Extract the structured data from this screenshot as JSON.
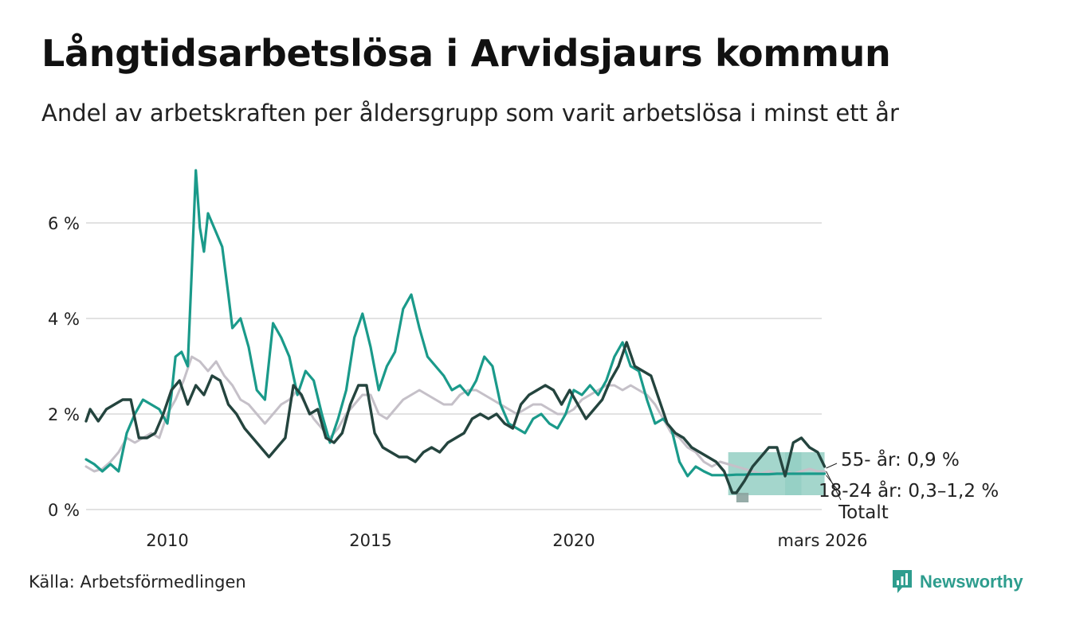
{
  "header": {
    "title": "Långtidsarbetslösa i Arvidsjaurs kommun",
    "subtitle": "Andel av arbetskraften per åldersgrupp som varit arbetslösa i minst ett år"
  },
  "footer": {
    "source": "Källa: Arbetsförmedlingen",
    "brand": "Newsworthy",
    "brand_icon": "newsworthy-logo-icon"
  },
  "colors": {
    "teal": "#1a9a8a",
    "dark": "#24443e",
    "grey": "#c5c0c8",
    "band": "#94cfc3",
    "band_dark": "#8ba39f",
    "grid": "#e2e2e2"
  },
  "chart_data": {
    "type": "line",
    "title": "Långtidsarbetslösa i Arvidsjaurs kommun",
    "xlabel": "",
    "ylabel": "",
    "xlim": [
      2008.0,
      2026.25
    ],
    "ylim": [
      0,
      7.2
    ],
    "y_ticks": [
      0,
      2,
      4,
      6
    ],
    "y_tick_labels": [
      "0 %",
      "2 %",
      "4 %",
      "6 %"
    ],
    "x_ticks": [
      2010,
      2015,
      2020,
      2026.17
    ],
    "x_tick_labels": [
      "2010",
      "2015",
      "2020",
      "mars 2026"
    ],
    "grid": true,
    "series": [
      {
        "name": "Totalt",
        "label": "Totalt",
        "color": "#c5c0c8",
        "x": [
          2008.0,
          2008.2,
          2008.4,
          2008.6,
          2008.8,
          2009.0,
          2009.2,
          2009.4,
          2009.6,
          2009.8,
          2010.0,
          2010.2,
          2010.4,
          2010.6,
          2010.8,
          2011.0,
          2011.2,
          2011.4,
          2011.6,
          2011.8,
          2012.0,
          2012.2,
          2012.4,
          2012.6,
          2012.8,
          2013.0,
          2013.2,
          2013.4,
          2013.6,
          2013.8,
          2014.0,
          2014.2,
          2014.4,
          2014.6,
          2014.8,
          2015.0,
          2015.2,
          2015.4,
          2015.6,
          2015.8,
          2016.0,
          2016.2,
          2016.4,
          2016.6,
          2016.8,
          2017.0,
          2017.2,
          2017.4,
          2017.6,
          2017.8,
          2018.0,
          2018.2,
          2018.4,
          2018.6,
          2018.8,
          2019.0,
          2019.2,
          2019.4,
          2019.6,
          2019.8,
          2020.0,
          2020.2,
          2020.4,
          2020.6,
          2020.8,
          2021.0,
          2021.2,
          2021.4,
          2021.6,
          2021.8,
          2022.0,
          2022.2,
          2022.4,
          2022.6,
          2022.8,
          2023.0,
          2023.2,
          2023.4,
          2023.6,
          2023.8,
          2024.0,
          2024.2,
          2024.4,
          2024.6,
          2024.8,
          2025.0,
          2025.2,
          2025.4,
          2025.6,
          2025.8,
          2026.0,
          2026.17
        ],
        "values": [
          0.9,
          0.8,
          0.85,
          1.0,
          1.2,
          1.5,
          1.4,
          1.5,
          1.6,
          1.5,
          2.0,
          2.3,
          2.7,
          3.2,
          3.1,
          2.9,
          3.1,
          2.8,
          2.6,
          2.3,
          2.2,
          2.0,
          1.8,
          2.0,
          2.2,
          2.3,
          2.5,
          2.2,
          1.9,
          1.7,
          1.5,
          1.7,
          2.0,
          2.2,
          2.4,
          2.4,
          2.0,
          1.9,
          2.1,
          2.3,
          2.4,
          2.5,
          2.4,
          2.3,
          2.2,
          2.2,
          2.4,
          2.5,
          2.5,
          2.4,
          2.3,
          2.2,
          2.1,
          2.0,
          2.1,
          2.2,
          2.2,
          2.1,
          2.0,
          2.0,
          2.1,
          2.3,
          2.4,
          2.5,
          2.6,
          2.6,
          2.5,
          2.6,
          2.5,
          2.4,
          2.2,
          1.9,
          1.6,
          1.5,
          1.3,
          1.2,
          1.0,
          0.9,
          1.0,
          0.95,
          0.9,
          0.85,
          0.8,
          0.75,
          0.8,
          0.75,
          0.8,
          0.75,
          0.8,
          0.85,
          0.8,
          0.8
        ]
      },
      {
        "name": "18-24 år",
        "label": "18-24 år: 0,3–1,2 %",
        "color": "#1a9a8a",
        "x": [
          2008.0,
          2008.2,
          2008.4,
          2008.6,
          2008.8,
          2009.0,
          2009.2,
          2009.4,
          2009.6,
          2009.8,
          2010.0,
          2010.1,
          2010.2,
          2010.35,
          2010.5,
          2010.6,
          2010.7,
          2010.8,
          2010.9,
          2011.0,
          2011.1,
          2011.2,
          2011.35,
          2011.5,
          2011.6,
          2011.8,
          2012.0,
          2012.2,
          2012.4,
          2012.6,
          2012.8,
          2013.0,
          2013.2,
          2013.4,
          2013.6,
          2013.8,
          2014.0,
          2014.2,
          2014.4,
          2014.6,
          2014.8,
          2015.0,
          2015.2,
          2015.4,
          2015.6,
          2015.8,
          2016.0,
          2016.2,
          2016.4,
          2016.6,
          2016.8,
          2017.0,
          2017.2,
          2017.4,
          2017.6,
          2017.8,
          2018.0,
          2018.2,
          2018.4,
          2018.6,
          2018.8,
          2019.0,
          2019.2,
          2019.4,
          2019.6,
          2019.8,
          2020.0,
          2020.2,
          2020.4,
          2020.6,
          2020.8,
          2021.0,
          2021.2,
          2021.4,
          2021.6,
          2021.8,
          2022.0,
          2022.2,
          2022.4,
          2022.6,
          2022.8,
          2023.0,
          2023.2,
          2023.4,
          2023.6,
          2023.8,
          2024.0,
          2024.2,
          2024.4,
          2024.6,
          2024.8,
          2025.0,
          2025.2,
          2025.4,
          2025.6,
          2025.8,
          2026.0,
          2026.17
        ],
        "values": [
          1.05,
          0.95,
          0.8,
          0.95,
          0.8,
          1.6,
          2.0,
          2.3,
          2.2,
          2.1,
          1.8,
          2.4,
          3.2,
          3.3,
          3.0,
          5.0,
          7.1,
          5.9,
          5.4,
          6.2,
          6.0,
          5.8,
          5.5,
          4.5,
          3.8,
          4.0,
          3.4,
          2.5,
          2.3,
          3.9,
          3.6,
          3.2,
          2.4,
          2.9,
          2.7,
          2.0,
          1.4,
          1.9,
          2.5,
          3.6,
          4.1,
          3.4,
          2.5,
          3.0,
          3.3,
          4.2,
          4.5,
          3.8,
          3.2,
          3.0,
          2.8,
          2.5,
          2.6,
          2.4,
          2.7,
          3.2,
          3.0,
          2.2,
          1.8,
          1.7,
          1.6,
          1.9,
          2.0,
          1.8,
          1.7,
          2.0,
          2.5,
          2.4,
          2.6,
          2.4,
          2.7,
          3.2,
          3.5,
          3.0,
          2.9,
          2.3,
          1.8,
          1.9,
          1.7,
          1.0,
          0.7,
          0.9,
          0.8,
          0.72,
          0.72,
          0.72,
          0.73,
          0.73,
          0.74,
          0.74,
          0.74,
          0.75,
          0.75,
          0.75,
          0.75,
          0.75,
          0.75,
          0.75
        ],
        "band_x": [
          2023.8,
          2025.6
        ],
        "band_low": 0.3,
        "band_high": 1.2
      },
      {
        "name": "55- år",
        "label": "55- år: 0,9 %",
        "color": "#24443e",
        "x": [
          2008.0,
          2008.1,
          2008.3,
          2008.5,
          2008.7,
          2008.9,
          2009.1,
          2009.3,
          2009.5,
          2009.7,
          2009.9,
          2010.1,
          2010.3,
          2010.5,
          2010.7,
          2010.9,
          2011.1,
          2011.3,
          2011.5,
          2011.7,
          2011.9,
          2012.1,
          2012.3,
          2012.5,
          2012.7,
          2012.9,
          2013.1,
          2013.3,
          2013.5,
          2013.7,
          2013.9,
          2014.1,
          2014.3,
          2014.5,
          2014.7,
          2014.9,
          2015.1,
          2015.3,
          2015.5,
          2015.7,
          2015.9,
          2016.1,
          2016.3,
          2016.5,
          2016.7,
          2016.9,
          2017.1,
          2017.3,
          2017.5,
          2017.7,
          2017.9,
          2018.1,
          2018.3,
          2018.5,
          2018.7,
          2018.9,
          2019.1,
          2019.3,
          2019.5,
          2019.7,
          2019.9,
          2020.1,
          2020.3,
          2020.5,
          2020.7,
          2020.9,
          2021.1,
          2021.3,
          2021.5,
          2021.7,
          2021.9,
          2022.1,
          2022.3,
          2022.5,
          2022.7,
          2022.9,
          2023.1,
          2023.3,
          2023.5,
          2023.7,
          2023.9,
          2024.0,
          2024.2,
          2024.4,
          2024.6,
          2024.8,
          2025.0,
          2025.2,
          2025.4,
          2025.6,
          2025.8,
          2026.0,
          2026.17
        ],
        "values": [
          1.85,
          2.1,
          1.85,
          2.1,
          2.2,
          2.3,
          2.3,
          1.5,
          1.5,
          1.6,
          2.0,
          2.5,
          2.7,
          2.2,
          2.6,
          2.4,
          2.8,
          2.7,
          2.2,
          2.0,
          1.7,
          1.5,
          1.3,
          1.1,
          1.3,
          1.5,
          2.6,
          2.4,
          2.0,
          2.1,
          1.5,
          1.4,
          1.6,
          2.2,
          2.6,
          2.6,
          1.6,
          1.3,
          1.2,
          1.1,
          1.1,
          1.0,
          1.2,
          1.3,
          1.2,
          1.4,
          1.5,
          1.6,
          1.9,
          2.0,
          1.9,
          2.0,
          1.8,
          1.7,
          2.2,
          2.4,
          2.5,
          2.6,
          2.5,
          2.2,
          2.5,
          2.2,
          1.9,
          2.1,
          2.3,
          2.7,
          3.0,
          3.5,
          3.0,
          2.9,
          2.8,
          2.3,
          1.8,
          1.6,
          1.5,
          1.3,
          1.2,
          1.1,
          1.0,
          0.8,
          0.35,
          0.35,
          0.6,
          0.9,
          1.1,
          1.3,
          1.3,
          0.7,
          1.4,
          1.5,
          1.3,
          1.2,
          0.9
        ],
        "band_x": [
          2024.0,
          2024.3
        ],
        "band_low": 0.15,
        "band_high": 0.35
      }
    ],
    "end_labels": [
      "55- år: 0,9 %",
      "18-24 år: 0,3–1,2 %",
      "Totalt"
    ]
  }
}
